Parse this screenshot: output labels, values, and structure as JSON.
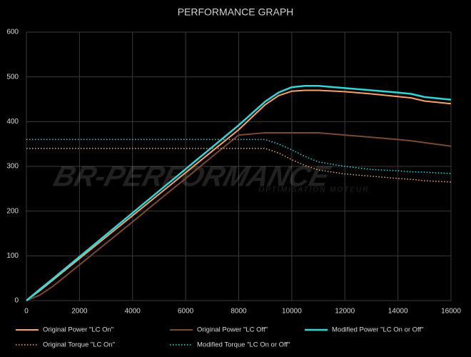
{
  "chart_data": {
    "type": "line",
    "title": "PERFORMANCE GRAPH",
    "watermark": "BR-PERFORMANCE",
    "watermark_subtitle": "OPTIMISATION MOTEUR",
    "x": [
      0,
      500,
      1000,
      2000,
      3000,
      4000,
      5000,
      6000,
      7000,
      8000,
      9000,
      9500,
      10000,
      10500,
      11000,
      12000,
      13000,
      14000,
      14500,
      15000,
      16000
    ],
    "series": [
      {
        "name": "Original Power \"LC On\"",
        "color": "#f4a46a",
        "style": "solid",
        "width": 2,
        "values": [
          0,
          22,
          46,
          94,
          142,
          190,
          238,
          286,
          334,
          382,
          438,
          458,
          468,
          470,
          470,
          467,
          462,
          456,
          453,
          446,
          440
        ]
      },
      {
        "name": "Original Power \"LC Off\"",
        "color": "#7a4a2e",
        "style": "solid",
        "width": 2,
        "values": [
          0,
          12,
          32,
          80,
          128,
          176,
          225,
          273,
          322,
          370,
          375,
          375,
          375,
          375,
          375,
          370,
          365,
          360,
          357,
          353,
          345
        ]
      },
      {
        "name": "Modified Power \"LC On or Off\"",
        "color": "#33d6d6",
        "style": "solid",
        "width": 2.5,
        "values": [
          0,
          25,
          49,
          98,
          147,
          196,
          245,
          294,
          343,
          392,
          445,
          465,
          477,
          480,
          480,
          475,
          470,
          465,
          462,
          455,
          449
        ]
      },
      {
        "name": "Original Torque \"LC On\"",
        "color": "#f4a46a",
        "style": "dotted",
        "width": 1.5,
        "values": [
          340,
          340,
          340,
          340,
          340,
          340,
          340,
          340,
          340,
          340,
          340,
          330,
          315,
          302,
          292,
          283,
          278,
          273,
          271,
          268,
          265
        ]
      },
      {
        "name": "Modified Torque \"LC On or Off\"",
        "color": "#33d6d6",
        "style": "dotted",
        "width": 1.5,
        "values": [
          360,
          360,
          360,
          360,
          360,
          360,
          360,
          360,
          360,
          360,
          360,
          350,
          337,
          322,
          310,
          300,
          293,
          290,
          288,
          287,
          284
        ]
      }
    ],
    "xlim": [
      0,
      16000
    ],
    "xticks": [
      0,
      2000,
      4000,
      6000,
      8000,
      10000,
      12000,
      14000,
      16000
    ],
    "ylim": [
      0,
      600
    ],
    "yticks": [
      0,
      100,
      200,
      300,
      400,
      500,
      600
    ],
    "grid": true
  }
}
